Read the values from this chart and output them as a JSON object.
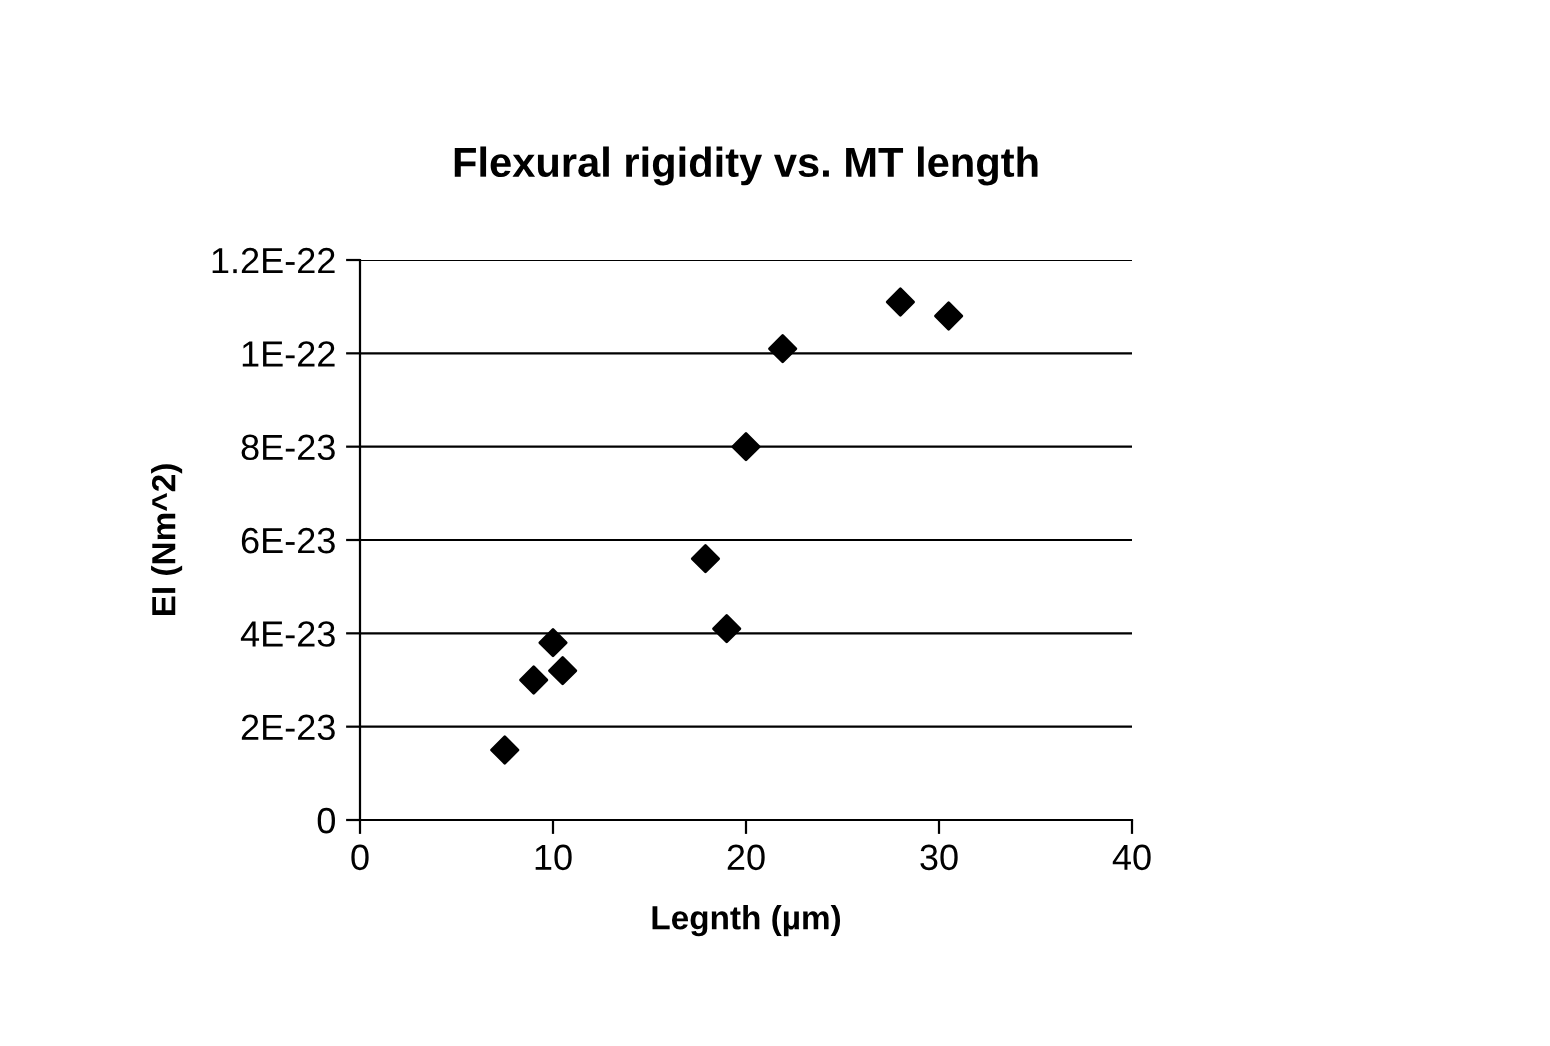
{
  "chart_data": {
    "type": "scatter",
    "title": "Flexural rigidity vs. MT length",
    "xlabel": "Legnth (µm)",
    "ylabel": "EI (Nm^2)",
    "x": [
      7.5,
      9.0,
      10.0,
      10.5,
      17.9,
      19.0,
      20.0,
      21.9,
      28.0,
      30.5
    ],
    "series": [
      {
        "color": "#000000",
        "values": [
          1.5e-23,
          3e-23,
          3.8e-23,
          3.2e-23,
          5.6e-23,
          4.1e-23,
          8e-23,
          1.01e-22,
          1.11e-22,
          1.08e-22
        ]
      }
    ],
    "xlim": [
      0,
      40
    ],
    "xticks": [
      0,
      10,
      20,
      30,
      40
    ],
    "ylim": [
      0,
      1.2e-22
    ],
    "yticks": [
      {
        "value": 0,
        "label": "0"
      },
      {
        "value": 2e-23,
        "label": "2E-23"
      },
      {
        "value": 4e-23,
        "label": "4E-23"
      },
      {
        "value": 6e-23,
        "label": "6E-23"
      },
      {
        "value": 8e-23,
        "label": "8E-23"
      },
      {
        "value": 1e-22,
        "label": "1E-22"
      },
      {
        "value": 1.2e-22,
        "label": "1.2E-22"
      }
    ],
    "grid": "y",
    "marker": "diamond",
    "legend": false
  }
}
